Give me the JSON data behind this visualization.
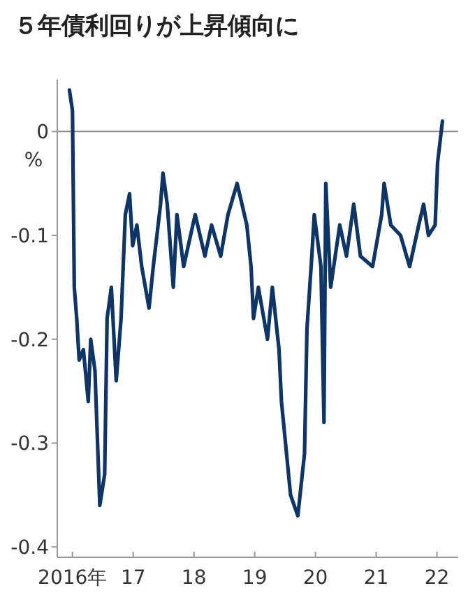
{
  "chart_data": {
    "type": "line",
    "title": "５年債利回りが上昇傾向に",
    "ylabel": "%",
    "x": [
      2015.95,
      2016.0,
      2016.03,
      2016.07,
      2016.11,
      2016.18,
      2016.26,
      2016.3,
      2016.37,
      2016.45,
      2016.53,
      2016.57,
      2016.64,
      2016.72,
      2016.8,
      2016.87,
      2016.94,
      2016.99,
      2017.06,
      2017.14,
      2017.26,
      2017.33,
      2017.45,
      2017.49,
      2017.56,
      2017.66,
      2017.72,
      2017.83,
      2018.02,
      2018.18,
      2018.29,
      2018.44,
      2018.56,
      2018.71,
      2018.87,
      2018.94,
      2018.98,
      2019.06,
      2019.21,
      2019.29,
      2019.4,
      2019.44,
      2019.59,
      2019.71,
      2019.82,
      2019.86,
      2019.94,
      2019.98,
      2020.09,
      2020.14,
      2020.17,
      2020.25,
      2020.4,
      2020.51,
      2020.63,
      2020.74,
      2020.94,
      2021.09,
      2021.13,
      2021.24,
      2021.4,
      2021.55,
      2021.7,
      2021.78,
      2021.86,
      2021.97,
      2022.01,
      2022.09
    ],
    "series": [
      {
        "color": "#0f3567",
        "values": [
          0.04,
          0.02,
          -0.15,
          -0.18,
          -0.22,
          -0.21,
          -0.26,
          -0.2,
          -0.23,
          -0.36,
          -0.33,
          -0.18,
          -0.15,
          -0.24,
          -0.18,
          -0.08,
          -0.06,
          -0.11,
          -0.09,
          -0.13,
          -0.17,
          -0.13,
          -0.07,
          -0.04,
          -0.07,
          -0.15,
          -0.08,
          -0.13,
          -0.08,
          -0.12,
          -0.09,
          -0.12,
          -0.08,
          -0.05,
          -0.09,
          -0.13,
          -0.18,
          -0.15,
          -0.2,
          -0.15,
          -0.21,
          -0.26,
          -0.35,
          -0.37,
          -0.31,
          -0.19,
          -0.12,
          -0.08,
          -0.13,
          -0.28,
          -0.05,
          -0.15,
          -0.09,
          -0.12,
          -0.07,
          -0.12,
          -0.13,
          -0.08,
          -0.05,
          -0.09,
          -0.1,
          -0.13,
          -0.09,
          -0.07,
          -0.1,
          -0.09,
          -0.03,
          0.01
        ]
      }
    ],
    "xlim": [
      2015.75,
      2022.35
    ],
    "ylim": [
      -0.41,
      0.05
    ],
    "xticks": [
      {
        "value": 2016,
        "label": "2016年"
      },
      {
        "value": 2017,
        "label": "17"
      },
      {
        "value": 2018,
        "label": "18"
      },
      {
        "value": 2019,
        "label": "19"
      },
      {
        "value": 2020,
        "label": "20"
      },
      {
        "value": 2021,
        "label": "21"
      },
      {
        "value": 2022,
        "label": "22"
      }
    ],
    "yticks": [
      0,
      -0.1,
      -0.2,
      -0.3,
      -0.4
    ],
    "ref_lines": [
      {
        "axis": "y",
        "value": 0,
        "color": "#888888"
      }
    ]
  }
}
